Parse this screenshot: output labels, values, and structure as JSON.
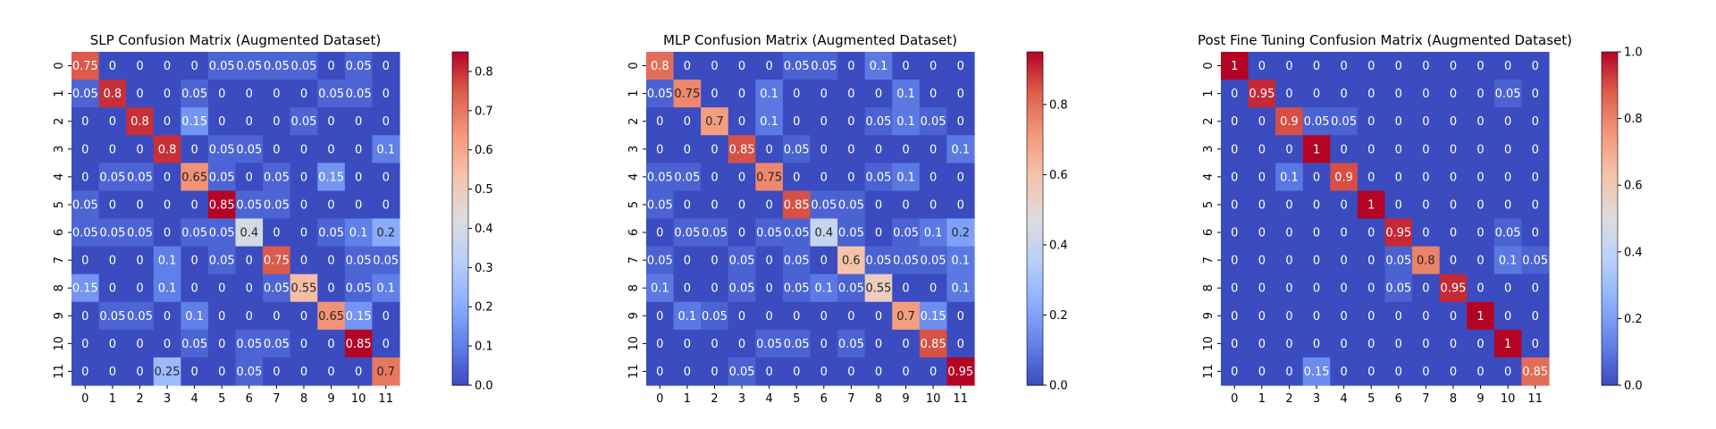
{
  "chart_data": [
    {
      "type": "heatmap",
      "title": "SLP Confusion Matrix (Augmented Dataset)",
      "xlabel": "",
      "ylabel": "",
      "x_categories": [
        "0",
        "1",
        "2",
        "3",
        "4",
        "5",
        "6",
        "7",
        "8",
        "9",
        "10",
        "11"
      ],
      "y_categories": [
        "0",
        "1",
        "2",
        "3",
        "4",
        "5",
        "6",
        "7",
        "8",
        "9",
        "10",
        "11"
      ],
      "values": [
        [
          0.75,
          0,
          0,
          0,
          0,
          0.05,
          0.05,
          0.05,
          0.05,
          0,
          0.05,
          0
        ],
        [
          0.05,
          0.8,
          0,
          0,
          0.05,
          0,
          0,
          0,
          0,
          0.05,
          0.05,
          0
        ],
        [
          0,
          0,
          0.8,
          0,
          0.15,
          0,
          0,
          0,
          0.05,
          0,
          0,
          0
        ],
        [
          0,
          0,
          0,
          0.8,
          0,
          0.05,
          0.05,
          0,
          0,
          0,
          0,
          0.1
        ],
        [
          0,
          0.05,
          0.05,
          0,
          0.65,
          0.05,
          0,
          0.05,
          0,
          0.15,
          0,
          0
        ],
        [
          0.05,
          0,
          0,
          0,
          0,
          0.85,
          0.05,
          0.05,
          0,
          0,
          0,
          0
        ],
        [
          0.05,
          0.05,
          0.05,
          0,
          0.05,
          0.05,
          0.4,
          0,
          0,
          0.05,
          0.1,
          0.2
        ],
        [
          0,
          0,
          0,
          0.1,
          0,
          0.05,
          0,
          0.75,
          0,
          0,
          0.05,
          0.05
        ],
        [
          0.15,
          0,
          0,
          0.1,
          0,
          0,
          0,
          0.05,
          0.55,
          0,
          0.05,
          0.1
        ],
        [
          0,
          0.05,
          0.05,
          0,
          0.1,
          0,
          0,
          0,
          0,
          0.65,
          0.15,
          0
        ],
        [
          0,
          0,
          0,
          0,
          0.05,
          0,
          0.05,
          0.05,
          0,
          0,
          0.85,
          0
        ],
        [
          0,
          0,
          0,
          0.25,
          0,
          0,
          0.05,
          0,
          0,
          0,
          0,
          0.7
        ]
      ],
      "colormap": "coolwarm",
      "vmin": 0,
      "vmax": 0.85,
      "colorbar_ticks": [
        0.0,
        0.1,
        0.2,
        0.3,
        0.4,
        0.5,
        0.6,
        0.7,
        0.8
      ],
      "colorbar_tick_labels": [
        "0.0",
        "0.1",
        "0.2",
        "0.3",
        "0.4",
        "0.5",
        "0.6",
        "0.7",
        "0.8"
      ]
    },
    {
      "type": "heatmap",
      "title": "MLP Confusion Matrix (Augmented Dataset)",
      "xlabel": "",
      "ylabel": "",
      "x_categories": [
        "0",
        "1",
        "2",
        "3",
        "4",
        "5",
        "6",
        "7",
        "8",
        "9",
        "10",
        "11"
      ],
      "y_categories": [
        "0",
        "1",
        "2",
        "3",
        "4",
        "5",
        "6",
        "7",
        "8",
        "9",
        "10",
        "11"
      ],
      "values": [
        [
          0.8,
          0,
          0,
          0,
          0,
          0.05,
          0.05,
          0,
          0.1,
          0,
          0,
          0
        ],
        [
          0.05,
          0.75,
          0,
          0,
          0.1,
          0,
          0,
          0,
          0,
          0.1,
          0,
          0
        ],
        [
          0,
          0,
          0.7,
          0,
          0.1,
          0,
          0,
          0,
          0.05,
          0.1,
          0.05,
          0
        ],
        [
          0,
          0,
          0,
          0.85,
          0,
          0.05,
          0,
          0,
          0,
          0,
          0,
          0.1
        ],
        [
          0.05,
          0.05,
          0,
          0,
          0.75,
          0,
          0,
          0,
          0.05,
          0.1,
          0,
          0
        ],
        [
          0.05,
          0,
          0,
          0,
          0,
          0.85,
          0.05,
          0.05,
          0,
          0,
          0,
          0
        ],
        [
          0,
          0.05,
          0.05,
          0,
          0.05,
          0.05,
          0.4,
          0.05,
          0,
          0.05,
          0.1,
          0.2
        ],
        [
          0.05,
          0,
          0,
          0.05,
          0,
          0.05,
          0,
          0.6,
          0.05,
          0.05,
          0.05,
          0.1
        ],
        [
          0.1,
          0,
          0,
          0.05,
          0,
          0.05,
          0.1,
          0.05,
          0.55,
          0,
          0,
          0.1
        ],
        [
          0,
          0.1,
          0.05,
          0,
          0,
          0,
          0,
          0,
          0,
          0.7,
          0.15,
          0
        ],
        [
          0,
          0,
          0,
          0,
          0.05,
          0.05,
          0,
          0.05,
          0,
          0,
          0.85,
          0
        ],
        [
          0,
          0,
          0,
          0.05,
          0,
          0,
          0,
          0,
          0,
          0,
          0,
          0.95
        ]
      ],
      "colormap": "coolwarm",
      "vmin": 0,
      "vmax": 0.95,
      "colorbar_ticks": [
        0.0,
        0.2,
        0.4,
        0.6,
        0.8
      ],
      "colorbar_tick_labels": [
        "0.0",
        "0.2",
        "0.4",
        "0.6",
        "0.8"
      ]
    },
    {
      "type": "heatmap",
      "title": "Post Fine Tuning Confusion Matrix (Augmented Dataset)",
      "xlabel": "",
      "ylabel": "",
      "x_categories": [
        "0",
        "1",
        "2",
        "3",
        "4",
        "5",
        "6",
        "7",
        "8",
        "9",
        "10",
        "11"
      ],
      "y_categories": [
        "0",
        "1",
        "2",
        "3",
        "4",
        "5",
        "6",
        "7",
        "8",
        "9",
        "10",
        "11"
      ],
      "values": [
        [
          1,
          0,
          0,
          0,
          0,
          0,
          0,
          0,
          0,
          0,
          0,
          0
        ],
        [
          0,
          0.95,
          0,
          0,
          0,
          0,
          0,
          0,
          0,
          0,
          0.05,
          0
        ],
        [
          0,
          0,
          0.9,
          0.05,
          0.05,
          0,
          0,
          0,
          0,
          0,
          0,
          0
        ],
        [
          0,
          0,
          0,
          1,
          0,
          0,
          0,
          0,
          0,
          0,
          0,
          0
        ],
        [
          0,
          0,
          0.1,
          0,
          0.9,
          0,
          0,
          0,
          0,
          0,
          0,
          0
        ],
        [
          0,
          0,
          0,
          0,
          0,
          1,
          0,
          0,
          0,
          0,
          0,
          0
        ],
        [
          0,
          0,
          0,
          0,
          0,
          0,
          0.95,
          0,
          0,
          0,
          0.05,
          0
        ],
        [
          0,
          0,
          0,
          0,
          0,
          0,
          0.05,
          0.8,
          0,
          0,
          0.1,
          0.05
        ],
        [
          0,
          0,
          0,
          0,
          0,
          0,
          0.05,
          0,
          0.95,
          0,
          0,
          0
        ],
        [
          0,
          0,
          0,
          0,
          0,
          0,
          0,
          0,
          0,
          1,
          0,
          0
        ],
        [
          0,
          0,
          0,
          0,
          0,
          0,
          0,
          0,
          0,
          0,
          1,
          0
        ],
        [
          0,
          0,
          0,
          0.15,
          0,
          0,
          0,
          0,
          0,
          0,
          0,
          0.85
        ]
      ],
      "colormap": "coolwarm",
      "vmin": 0,
      "vmax": 1.0,
      "colorbar_ticks": [
        0.0,
        0.2,
        0.4,
        0.6,
        0.8,
        1.0
      ],
      "colorbar_tick_labels": [
        "0.0",
        "0.2",
        "0.4",
        "0.6",
        "0.8",
        "1.0"
      ]
    }
  ]
}
